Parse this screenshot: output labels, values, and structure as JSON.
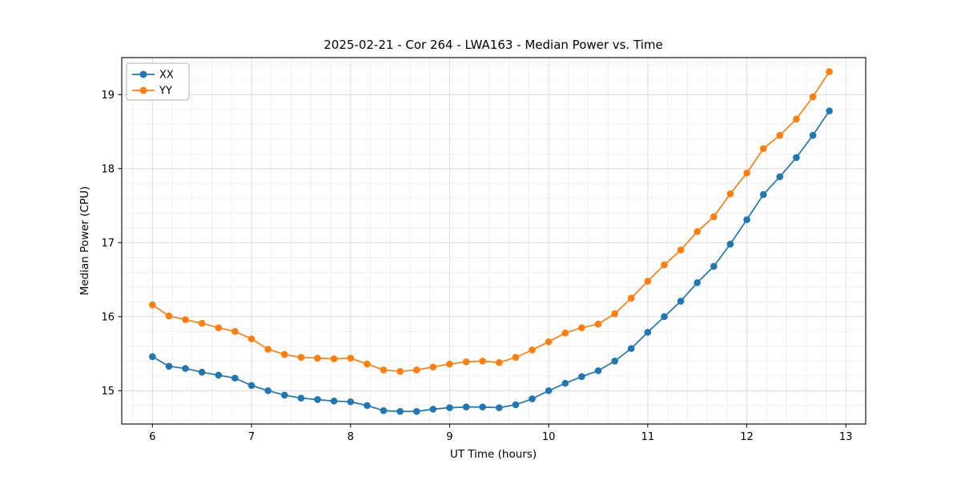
{
  "chart_data": {
    "type": "line",
    "title": "2025-02-21 - Cor 264 - LWA163 - Median Power vs. Time",
    "xlabel": "UT Time (hours)",
    "ylabel": "Median Power (CPU)",
    "xlim": [
      5.69,
      13.2
    ],
    "ylim": [
      14.55,
      19.5
    ],
    "xticks": [
      6,
      7,
      8,
      9,
      10,
      11,
      12,
      13
    ],
    "yticks": [
      15,
      16,
      17,
      18,
      19
    ],
    "grid": true,
    "legend_position": "upper left",
    "x": [
      6.0,
      6.167,
      6.333,
      6.5,
      6.667,
      6.833,
      7.0,
      7.167,
      7.333,
      7.5,
      7.667,
      7.833,
      8.0,
      8.167,
      8.333,
      8.5,
      8.667,
      8.833,
      9.0,
      9.167,
      9.333,
      9.5,
      9.667,
      9.833,
      10.0,
      10.167,
      10.333,
      10.5,
      10.667,
      10.833,
      11.0,
      11.167,
      11.333,
      11.5,
      11.667,
      11.833,
      12.0,
      12.167,
      12.333,
      12.5,
      12.667,
      12.833
    ],
    "series": [
      {
        "name": "XX",
        "color": "#1f77b4",
        "values": [
          15.46,
          15.33,
          15.3,
          15.25,
          15.21,
          15.17,
          15.07,
          15.0,
          14.94,
          14.9,
          14.88,
          14.86,
          14.85,
          14.8,
          14.73,
          14.72,
          14.72,
          14.75,
          14.77,
          14.78,
          14.78,
          14.77,
          14.81,
          14.89,
          15.0,
          15.1,
          15.19,
          15.27,
          15.4,
          15.57,
          15.79,
          16.0,
          16.21,
          16.46,
          16.68,
          16.98,
          17.31,
          17.65,
          17.89,
          18.15,
          18.45,
          18.78
        ]
      },
      {
        "name": "YY",
        "color": "#ff7f0e",
        "values": [
          16.16,
          16.01,
          15.96,
          15.91,
          15.85,
          15.8,
          15.7,
          15.56,
          15.49,
          15.45,
          15.44,
          15.43,
          15.44,
          15.36,
          15.28,
          15.26,
          15.28,
          15.32,
          15.36,
          15.39,
          15.4,
          15.38,
          15.45,
          15.55,
          15.66,
          15.78,
          15.85,
          15.9,
          16.04,
          16.25,
          16.48,
          16.7,
          16.9,
          17.15,
          17.35,
          17.66,
          17.94,
          18.27,
          18.45,
          18.67,
          18.97,
          19.31
        ]
      }
    ]
  }
}
